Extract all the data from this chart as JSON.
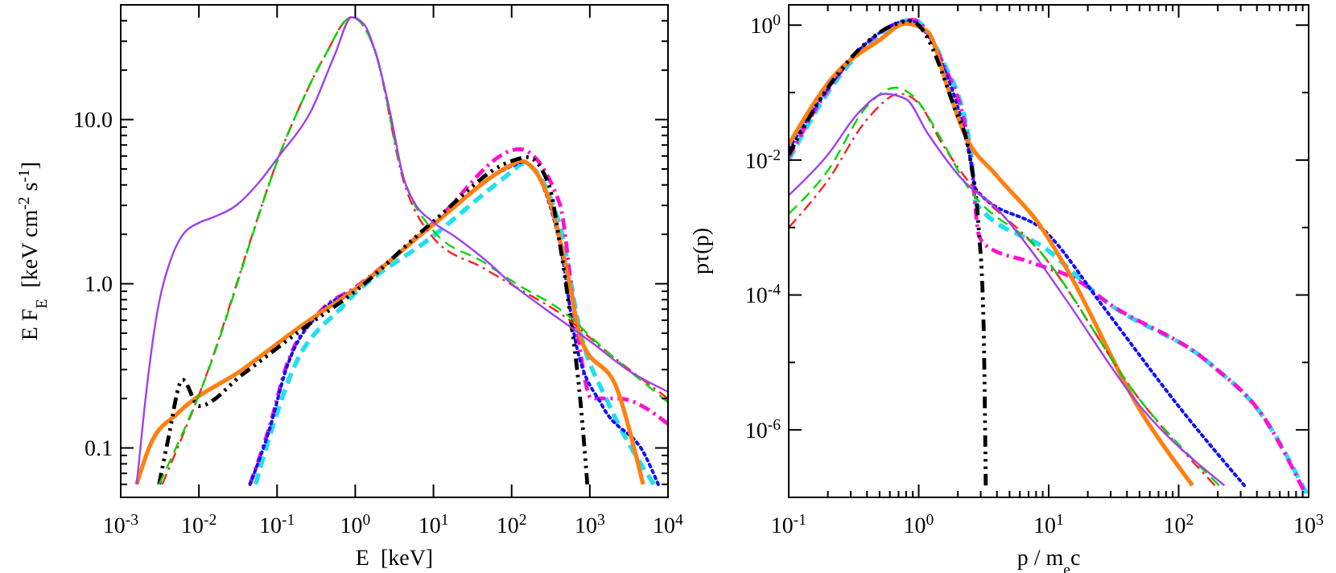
{
  "chart_data": [
    {
      "type": "line",
      "log": "xy",
      "xlabel": "E  [keV]",
      "ylabel": "E F$_{E}$  [keV cm$^{-2}$ s$^{-1}$]",
      "xlim": [
        0.001,
        10000
      ],
      "ylim": [
        0.05,
        50
      ],
      "xticks": [
        {
          "value": 0.001,
          "label": "10$^{-3}$"
        },
        {
          "value": 0.01,
          "label": "10$^{-2}$"
        },
        {
          "value": 0.1,
          "label": "10$^{-1}$"
        },
        {
          "value": 1,
          "label": "10$^{0}$"
        },
        {
          "value": 10,
          "label": "10$^{1}$"
        },
        {
          "value": 100,
          "label": "10$^{2}$"
        },
        {
          "value": 1000,
          "label": "10$^{3}$"
        },
        {
          "value": 10000,
          "label": "10$^{4}$"
        }
      ],
      "yticks": [
        {
          "value": 0.06,
          "label": null
        },
        {
          "value": 0.07,
          "label": null
        },
        {
          "value": 0.08,
          "label": null
        },
        {
          "value": 0.09,
          "label": null
        },
        {
          "value": 0.1,
          "label": "0.1"
        },
        {
          "value": 0.2,
          "label": null
        },
        {
          "value": 0.3,
          "label": null
        },
        {
          "value": 0.4,
          "label": null
        },
        {
          "value": 0.5,
          "label": null
        },
        {
          "value": 0.6,
          "label": null
        },
        {
          "value": 0.7,
          "label": null
        },
        {
          "value": 0.8,
          "label": null
        },
        {
          "value": 0.9,
          "label": null
        },
        {
          "value": 1,
          "label": "1.0"
        },
        {
          "value": 2,
          "label": null
        },
        {
          "value": 3,
          "label": null
        },
        {
          "value": 4,
          "label": null
        },
        {
          "value": 5,
          "label": null
        },
        {
          "value": 6,
          "label": null
        },
        {
          "value": 7,
          "label": null
        },
        {
          "value": 8,
          "label": null
        },
        {
          "value": 9,
          "label": null
        },
        {
          "value": 10,
          "label": "10.0"
        },
        {
          "value": 20,
          "label": null
        },
        {
          "value": 30,
          "label": null
        },
        {
          "value": 40,
          "label": null
        }
      ],
      "series": [
        {
          "color": "#a040f0",
          "line_style": "solid",
          "x": [
            0.0016,
            0.002,
            0.0028,
            0.0045,
            0.0061,
            0.01,
            0.014,
            0.03,
            0.06,
            0.106,
            0.27,
            0.55,
            0.9,
            1.3,
            1.8,
            2.8,
            4.1,
            6,
            9.1,
            20,
            50,
            100,
            250,
            550,
            1050,
            3000,
            10000
          ],
          "values": [
            0.06,
            0.17,
            0.59,
            1.46,
            1.96,
            2.35,
            2.5,
            3.0,
            4.2,
            6.0,
            11.2,
            25,
            42,
            38,
            26,
            11,
            4.5,
            3.0,
            2.45,
            1.9,
            1.35,
            1.0,
            0.72,
            0.55,
            0.44,
            0.3,
            0.22
          ]
        },
        {
          "color": "#00d800",
          "line_style": "dashed",
          "x": [
            0.0031,
            0.01,
            0.148,
            0.4,
            0.9,
            1.8,
            4.1,
            10,
            43,
            115,
            550,
            1050,
            10000
          ],
          "values": [
            0.06,
            0.21,
            8.9,
            24,
            42,
            26,
            4.5,
            2.1,
            1.36,
            1.0,
            0.63,
            0.47,
            0.19
          ]
        },
        {
          "color": "#ff2020",
          "line_style": "dashdot",
          "x": [
            0.0034,
            0.01,
            0.148,
            0.4,
            0.9,
            1.8,
            4.1,
            10,
            43,
            115,
            550,
            1050,
            10000
          ],
          "values": [
            0.06,
            0.21,
            8.9,
            24,
            42,
            26,
            4.3,
            1.9,
            1.25,
            0.95,
            0.6,
            0.46,
            0.2
          ]
        },
        {
          "color": "#000000",
          "line_style": "dashdotdot",
          "x": [
            0.0031,
            0.004,
            0.0062,
            0.01,
            0.036,
            0.2,
            1,
            10,
            100,
            160,
            300,
            410,
            550,
            760,
            930
          ],
          "values": [
            0.06,
            0.11,
            0.26,
            0.18,
            0.28,
            0.52,
            0.9,
            2.4,
            5.6,
            5.9,
            4.0,
            1.8,
            0.69,
            0.19,
            0.06
          ]
        },
        {
          "color": "#ff8010",
          "line_style": "solid",
          "x": [
            0.0016,
            0.0024,
            0.0054,
            0.036,
            0.2,
            1,
            10,
            100,
            130,
            300,
            550,
            760,
            2300,
            4800
          ],
          "values": [
            0.06,
            0.105,
            0.163,
            0.3,
            0.55,
            0.93,
            2.3,
            5.3,
            5.6,
            3.3,
            1.0,
            0.47,
            0.22,
            0.06
          ]
        },
        {
          "color": "#1010ff",
          "line_style": "dotted",
          "x": [
            0.045,
            0.08,
            0.13,
            0.38,
            1,
            10,
            100,
            140,
            410,
            660,
            1450,
            5100,
            7500
          ],
          "values": [
            0.06,
            0.13,
            0.3,
            0.69,
            0.93,
            2.3,
            5.2,
            5.5,
            1.8,
            0.44,
            0.18,
            0.09,
            0.06
          ]
        },
        {
          "color": "#ff10d0",
          "line_style": "dashdot",
          "x": [
            0.045,
            0.08,
            0.13,
            0.38,
            1,
            10,
            126,
            410,
            660,
            1050,
            2300,
            10000
          ],
          "values": [
            0.06,
            0.135,
            0.31,
            0.7,
            0.95,
            2.35,
            6.6,
            3.1,
            0.59,
            0.2,
            0.2,
            0.14
          ]
        },
        {
          "color": "#20e0f0",
          "line_style": "dashed",
          "x": [
            0.053,
            0.09,
            0.15,
            0.71,
            10,
            100,
            140,
            410,
            760,
            1700,
            6600
          ],
          "values": [
            0.06,
            0.14,
            0.28,
            0.74,
            1.96,
            4.8,
            5.4,
            2.3,
            0.5,
            0.19,
            0.06
          ]
        }
      ]
    },
    {
      "type": "line",
      "log": "xy",
      "xlabel": "p / m$_{e}$c",
      "ylabel": "pτ(p)",
      "xlim": [
        0.1,
        1000
      ],
      "ylim": [
        1e-07,
        2
      ],
      "xticks": [
        {
          "value": 0.1,
          "label": "10$^{-1}$"
        },
        {
          "value": 0.2,
          "label": null
        },
        {
          "value": 0.3,
          "label": null
        },
        {
          "value": 0.4,
          "label": null
        },
        {
          "value": 0.5,
          "label": null
        },
        {
          "value": 0.6,
          "label": null
        },
        {
          "value": 0.7,
          "label": null
        },
        {
          "value": 0.8,
          "label": null
        },
        {
          "value": 0.9,
          "label": null
        },
        {
          "value": 1,
          "label": "10$^{0}$"
        },
        {
          "value": 2,
          "label": null
        },
        {
          "value": 3,
          "label": null
        },
        {
          "value": 4,
          "label": null
        },
        {
          "value": 5,
          "label": null
        },
        {
          "value": 6,
          "label": null
        },
        {
          "value": 7,
          "label": null
        },
        {
          "value": 8,
          "label": null
        },
        {
          "value": 9,
          "label": null
        },
        {
          "value": 10,
          "label": "10$^{1}$"
        },
        {
          "value": 20,
          "label": null
        },
        {
          "value": 30,
          "label": null
        },
        {
          "value": 40,
          "label": null
        },
        {
          "value": 50,
          "label": null
        },
        {
          "value": 60,
          "label": null
        },
        {
          "value": 70,
          "label": null
        },
        {
          "value": 80,
          "label": null
        },
        {
          "value": 90,
          "label": null
        },
        {
          "value": 100,
          "label": "10$^{2}$"
        },
        {
          "value": 200,
          "label": null
        },
        {
          "value": 300,
          "label": null
        },
        {
          "value": 400,
          "label": null
        },
        {
          "value": 500,
          "label": null
        },
        {
          "value": 600,
          "label": null
        },
        {
          "value": 700,
          "label": null
        },
        {
          "value": 800,
          "label": null
        },
        {
          "value": 900,
          "label": null
        },
        {
          "value": 1000,
          "label": "10$^{3}$"
        }
      ],
      "yticks": [
        {
          "value": 1e-06,
          "label": "10$^{-6}$"
        },
        {
          "value": 1e-05,
          "label": null
        },
        {
          "value": 0.0001,
          "label": "10$^{-4}$"
        },
        {
          "value": 0.001,
          "label": null
        },
        {
          "value": 0.01,
          "label": "10$^{-2}$"
        },
        {
          "value": 0.1,
          "label": null
        },
        {
          "value": 1,
          "label": "10$^{0}$"
        }
      ],
      "series": [
        {
          "color": "#a040f0",
          "line_style": "solid",
          "x": [
            0.1,
            0.2,
            0.35,
            0.55,
            0.8,
            1.17,
            2.24,
            4,
            8.5,
            13.5,
            51,
            225
          ],
          "values": [
            0.003,
            0.012,
            0.052,
            0.096,
            0.08,
            0.025,
            0.0048,
            0.0019,
            0.00031,
            8.7e-05,
            2.2e-06,
            1.5e-07
          ]
        },
        {
          "color": "#00d800",
          "line_style": "dashed",
          "x": [
            0.1,
            0.2,
            0.4,
            0.66,
            0.9,
            1.5,
            2.24,
            8.5,
            51,
            205
          ],
          "values": [
            0.0016,
            0.007,
            0.063,
            0.118,
            0.09,
            0.02,
            0.0048,
            0.00045,
            2.7e-06,
            1.5e-07
          ]
        },
        {
          "color": "#ff2020",
          "line_style": "dashdot",
          "x": [
            0.1,
            0.2,
            0.4,
            0.72,
            1,
            1.5,
            2.24,
            8.5,
            51,
            190
          ],
          "values": [
            0.001,
            0.005,
            0.04,
            0.096,
            0.07,
            0.018,
            0.0058,
            0.00045,
            2.7e-06,
            1.5e-07
          ]
        },
        {
          "color": "#000000",
          "line_style": "dashdotdot",
          "x": [
            0.1,
            0.2,
            0.4,
            0.87,
            1.87,
            2.5,
            2.9,
            3.15,
            3.28
          ],
          "values": [
            0.012,
            0.118,
            0.56,
            1.15,
            0.062,
            0.01,
            0.00093,
            4.2e-05,
            1.5e-07
          ]
        },
        {
          "color": "#ff8010",
          "line_style": "solid",
          "x": [
            0.1,
            0.23,
            0.5,
            0.79,
            1.17,
            1.7,
            2.24,
            4,
            8.5,
            13.5,
            51,
            128
          ],
          "values": [
            0.017,
            0.19,
            0.6,
            1.05,
            0.8,
            0.107,
            0.025,
            0.0058,
            0.0011,
            0.00026,
            1.9e-06,
            1.5e-07
          ]
        },
        {
          "color": "#1010ff",
          "line_style": "dotted",
          "x": [
            0.1,
            0.2,
            0.4,
            0.85,
            1.5,
            2.5,
            2.75,
            10,
            26,
            107,
            320
          ],
          "values": [
            0.0145,
            0.115,
            0.55,
            1.15,
            0.28,
            0.01,
            0.0037,
            0.00078,
            6.9e-05,
            1.9e-06,
            1.5e-07
          ]
        },
        {
          "color": "#ff10d0",
          "line_style": "dashdot",
          "x": [
            0.1,
            0.2,
            0.4,
            0.9,
            1.5,
            2.5,
            2.9,
            3.3,
            7.1,
            18,
            26,
            174,
            450,
            910
          ],
          "values": [
            0.011,
            0.11,
            0.54,
            1.2,
            0.3,
            0.012,
            0.00078,
            0.00054,
            0.00031,
            0.00015,
            8.7e-05,
            9.6e-06,
            1.55e-06,
            1.3e-07
          ]
        },
        {
          "color": "#20e0f0",
          "line_style": "dashed",
          "x": [
            0.1,
            0.2,
            0.4,
            0.9,
            1.5,
            2.5,
            2.75,
            10,
            26,
            174,
            450,
            960
          ],
          "values": [
            0.01,
            0.1,
            0.5,
            1.2,
            0.32,
            0.015,
            0.0023,
            0.00045,
            8.7e-05,
            9.6e-06,
            1.55e-06,
            1.15e-07
          ]
        }
      ]
    }
  ]
}
